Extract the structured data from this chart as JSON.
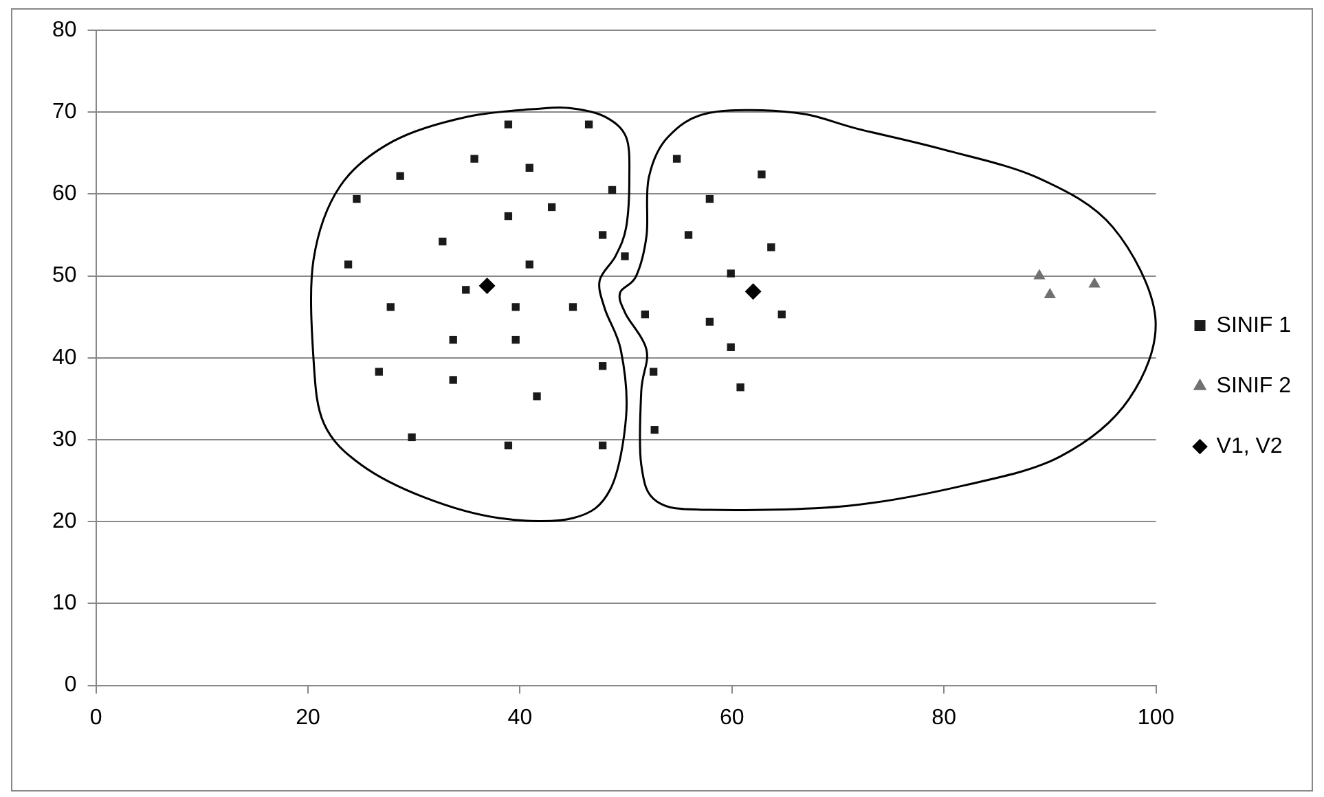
{
  "chart_data": {
    "type": "scatter",
    "xlim": [
      0,
      100
    ],
    "xticks": [
      0,
      20,
      40,
      60,
      80,
      100
    ],
    "ylim": [
      0,
      80
    ],
    "yticks": [
      0,
      10,
      20,
      30,
      40,
      50,
      60,
      70,
      80
    ],
    "grid": "y",
    "legend": "right",
    "series": [
      {
        "name": "SINIF 1",
        "color": "#1a1a1a",
        "marker": "square",
        "x": [
          38.9,
          46.5,
          35.7,
          40.9,
          28.7,
          48.7,
          24.6,
          43,
          38.9,
          47.8,
          32.7,
          49.9,
          23.8,
          40.9,
          34.9,
          27.8,
          39.6,
          45,
          51.8,
          33.7,
          39.6,
          47.8,
          52.6,
          26.7,
          33.7,
          41.6,
          29.8,
          38.9,
          47.8,
          52.7,
          54.8,
          62.8,
          57.9,
          55.9,
          63.7,
          59.9,
          64.7,
          57.9,
          59.9,
          60.8
        ],
        "values": [
          68.5,
          68.5,
          64.3,
          63.2,
          62.2,
          60.5,
          59.4,
          58.4,
          57.3,
          55,
          54.2,
          52.4,
          51.4,
          51.4,
          48.3,
          46.2,
          46.2,
          46.2,
          45.3,
          42.2,
          42.2,
          39,
          38.3,
          38.3,
          37.3,
          35.3,
          30.3,
          29.3,
          29.3,
          31.2,
          64.3,
          62.4,
          59.4,
          55,
          53.5,
          50.3,
          45.3,
          44.4,
          41.3,
          36.4
        ]
      },
      {
        "name": "SINIF 2",
        "color": "#707070",
        "marker": "triangle",
        "x": [
          89,
          90,
          94.2
        ],
        "values": [
          50,
          47.7,
          49
        ]
      },
      {
        "name": "V1, V2",
        "color": "#000000",
        "marker": "diamond",
        "x": [
          36.9,
          62
        ],
        "values": [
          48.8,
          48.1
        ]
      }
    ]
  }
}
